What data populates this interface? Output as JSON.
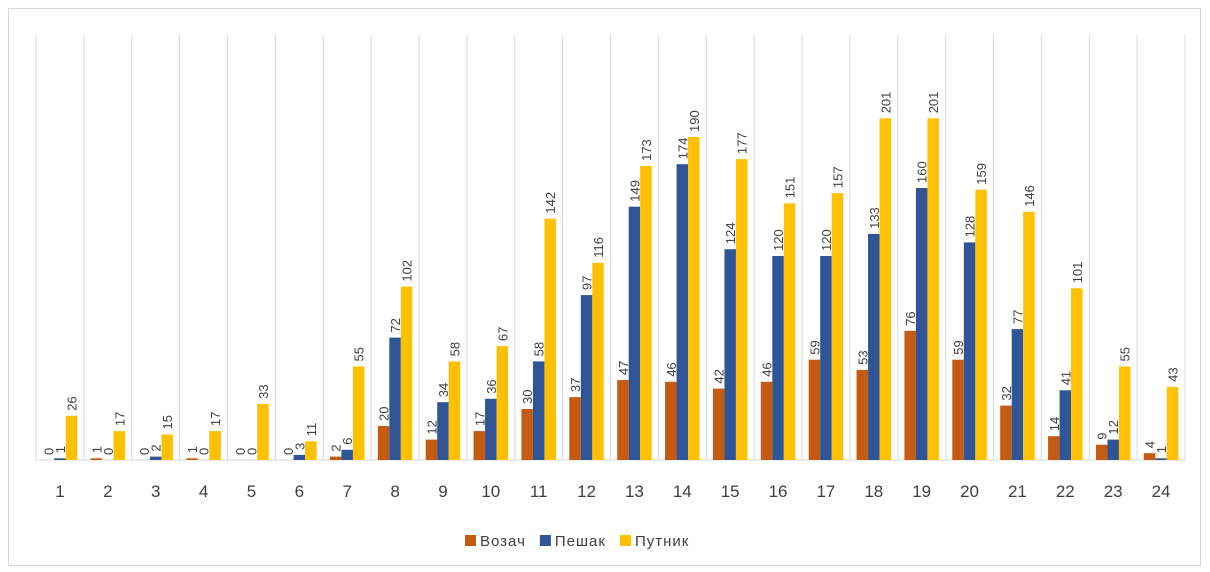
{
  "chart_data": {
    "type": "bar",
    "categories": [
      "1",
      "2",
      "3",
      "4",
      "5",
      "6",
      "7",
      "8",
      "9",
      "10",
      "11",
      "12",
      "13",
      "14",
      "15",
      "16",
      "17",
      "18",
      "19",
      "20",
      "21",
      "22",
      "23",
      "24"
    ],
    "series": [
      {
        "name": "Возач",
        "color": "#c55a11",
        "values": [
          0,
          1,
          0,
          1,
          0,
          0,
          2,
          20,
          12,
          17,
          30,
          37,
          47,
          46,
          42,
          46,
          59,
          53,
          76,
          59,
          32,
          14,
          9,
          4
        ]
      },
      {
        "name": "Пешак",
        "color": "#2f5597",
        "values": [
          1,
          0,
          2,
          0,
          0,
          3,
          6,
          72,
          34,
          36,
          58,
          97,
          149,
          174,
          124,
          120,
          120,
          133,
          160,
          128,
          77,
          41,
          12,
          1
        ]
      },
      {
        "name": "Путник",
        "color": "#ffc000",
        "values": [
          26,
          17,
          15,
          17,
          33,
          11,
          55,
          102,
          58,
          67,
          142,
          116,
          173,
          190,
          177,
          151,
          157,
          201,
          201,
          159,
          146,
          101,
          55,
          43
        ]
      }
    ],
    "ylim": [
      0,
      250
    ],
    "legend": "bottom"
  }
}
